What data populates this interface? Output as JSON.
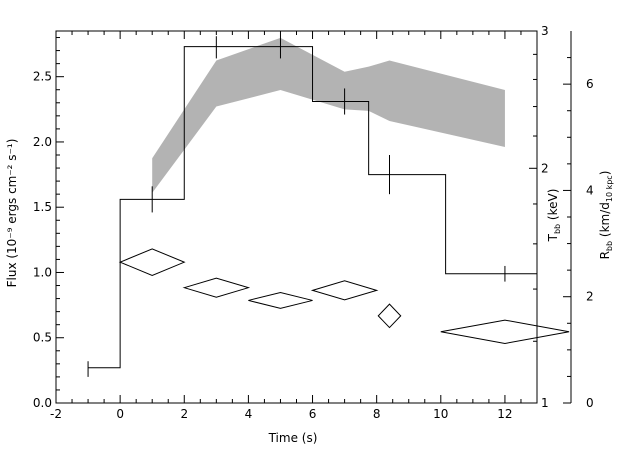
{
  "chart_data": {
    "type": "line",
    "title": "",
    "xlabel": "Time (s)",
    "xlim": [
      -2,
      13
    ],
    "x_ticks": [
      -2,
      0,
      2,
      4,
      6,
      8,
      10,
      12
    ],
    "ylabel_left": "Flux (10⁻⁹ ergs cm⁻² s⁻¹)",
    "ylim_left": [
      0,
      2.85
    ],
    "y_ticks_left": [
      "0.0",
      "0.5",
      "1.0",
      "1.5",
      "2.0",
      "2.5"
    ],
    "ylabel_tbb": "T_bb (keV)",
    "ylabel_tbb_main": "T",
    "ylabel_tbb_sub": "bb",
    "ylabel_tbb_rest": " (keV)",
    "ylim_tbb_log": [
      1,
      3
    ],
    "y_ticks_tbb": [
      "1",
      "2",
      "3"
    ],
    "ylabel_rbb": "R_bb (km/d_10 kpc)",
    "ylabel_rbb_main": "R",
    "ylabel_rbb_sub": "bb",
    "ylabel_rbb_mid": " (km/d",
    "ylabel_rbb_sub2": "10 kpc",
    "ylabel_rbb_end": ")",
    "ylim_rbb": [
      0,
      7
    ],
    "y_ticks_rbb": [
      "0",
      "2",
      "4",
      "6"
    ],
    "series": [
      {
        "type": "step",
        "note_units": "flux",
        "bins": [
          {
            "x0": -1,
            "x1": 0,
            "y": 0.27
          },
          {
            "x0": 0,
            "x1": 2,
            "y": 1.56
          },
          {
            "x0": 2,
            "x1": 4,
            "y": 2.73
          },
          {
            "x0": 4,
            "x1": 6,
            "y": 2.73
          },
          {
            "x0": 6,
            "x1": 7.75,
            "y": 2.31
          },
          {
            "x0": 7.75,
            "x1": 10.15,
            "y": 1.75
          },
          {
            "x0": 10.15,
            "x1": 13,
            "y": 0.99
          }
        ],
        "error_bars": [
          {
            "x": -1,
            "y": 0.27,
            "lo": 0.2,
            "hi": 0.32
          },
          {
            "x": 1,
            "y": 1.56,
            "lo": 1.46,
            "hi": 1.66
          },
          {
            "x": 3,
            "y": 2.73,
            "lo": 2.64,
            "hi": 2.81
          },
          {
            "x": 5,
            "y": 2.73,
            "lo": 2.64,
            "hi": 2.82
          },
          {
            "x": 7,
            "y": 2.31,
            "lo": 2.21,
            "hi": 2.41
          },
          {
            "x": 8.4,
            "y": 1.75,
            "lo": 1.6,
            "hi": 1.9
          },
          {
            "x": 12,
            "y": 0.99,
            "lo": 0.93,
            "hi": 1.05
          }
        ]
      },
      {
        "type": "band",
        "note_units": "T_bb keV (log axis)",
        "x": [
          1,
          3,
          5,
          7,
          7.75,
          8.4,
          12
        ],
        "lower": [
          1.86,
          2.4,
          2.52,
          2.38,
          2.37,
          2.3,
          2.13
        ],
        "upper": [
          2.06,
          2.75,
          2.94,
          2.66,
          2.7,
          2.75,
          2.52
        ]
      },
      {
        "type": "diamonds",
        "note_units": "R_bb km",
        "points": [
          {
            "x": 1,
            "y": 2.65,
            "dx": 1,
            "dy": 0.25
          },
          {
            "x": 3,
            "y": 2.17,
            "dx": 1,
            "dy": 0.18
          },
          {
            "x": 5,
            "y": 1.93,
            "dx": 1,
            "dy": 0.15
          },
          {
            "x": 7,
            "y": 2.12,
            "dx": 1,
            "dy": 0.18
          },
          {
            "x": 8.4,
            "y": 1.64,
            "dx": 0.35,
            "dy": 0.22
          },
          {
            "x": 12,
            "y": 1.34,
            "dx": 2,
            "dy": 0.22
          }
        ]
      }
    ],
    "colors": {
      "band": "#b3b3b3",
      "line": "#000000"
    }
  }
}
